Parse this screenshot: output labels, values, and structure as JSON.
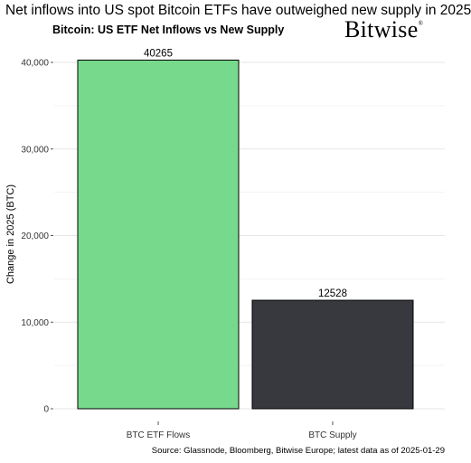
{
  "header": {
    "headline": "Net inflows into US spot Bitcoin ETFs have outweighed new supply in 2025",
    "brand": "Bitwise"
  },
  "footer": {
    "source": "Source: Glassnode, Bloomberg, Bitwise Europe; latest data as of 2025-01-29"
  },
  "chart_data": {
    "type": "bar",
    "title": "Bitcoin: US ETF Net Inflows vs New Supply",
    "xlabel": "",
    "ylabel": "Change in 2025 (BTC)",
    "categories": [
      "BTC ETF Flows",
      "BTC Supply"
    ],
    "values": [
      40265,
      12528
    ],
    "data_labels": [
      "40265",
      "12528"
    ],
    "bar_colors": [
      "#77d98b",
      "#37393e"
    ],
    "ylim": [
      0,
      42000
    ],
    "yticks": [
      0,
      10000,
      20000,
      30000,
      40000
    ],
    "ytick_labels": [
      "0",
      "10,000",
      "20,000",
      "30,000",
      "40,000"
    ],
    "grid": true,
    "legend": "none"
  }
}
